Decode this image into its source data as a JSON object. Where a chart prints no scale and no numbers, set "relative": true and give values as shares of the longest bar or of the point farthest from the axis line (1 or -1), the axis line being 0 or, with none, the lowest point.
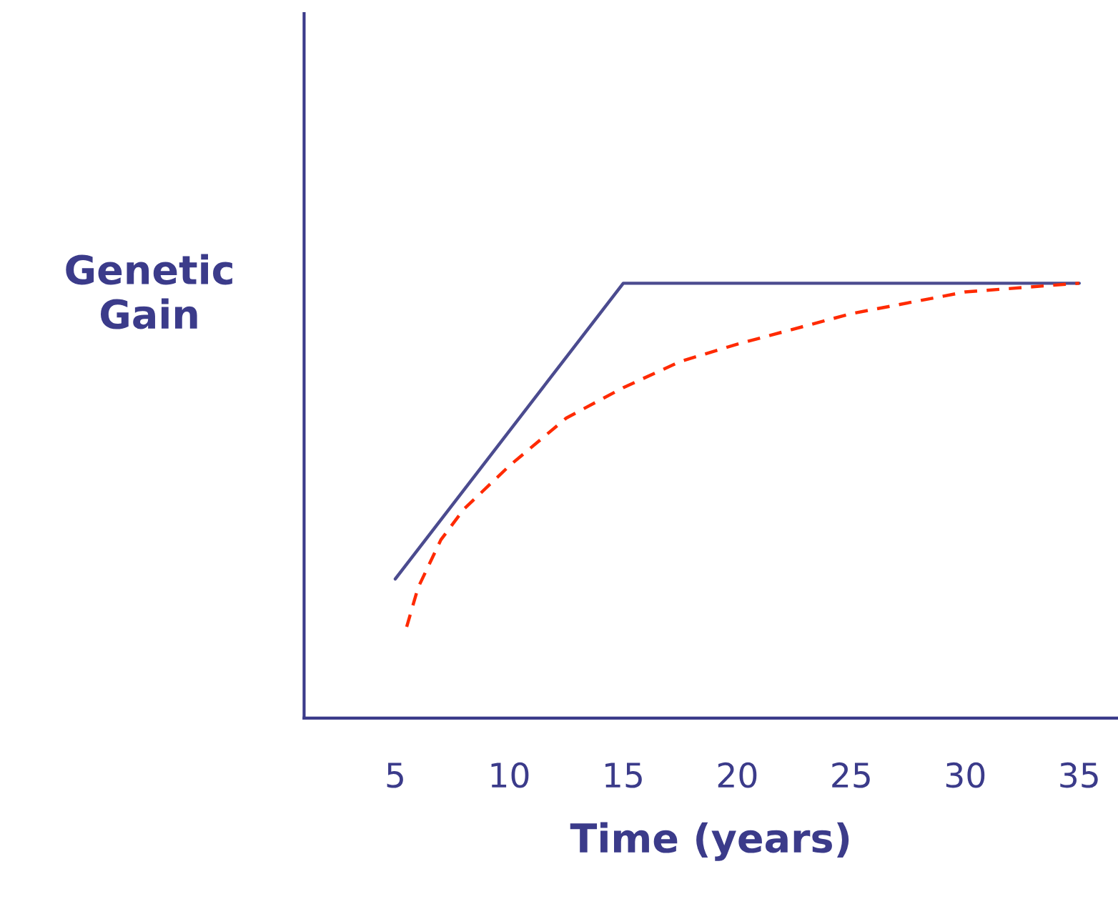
{
  "chart_data": {
    "type": "line",
    "relative": true,
    "xlabel": "Time (years)",
    "ylabel": "Genetic\nGain",
    "xlim": [
      1,
      36.7
    ],
    "xticks": [
      5,
      10,
      15,
      20,
      25,
      30,
      35
    ],
    "grid": false,
    "legend": false,
    "marker": "none",
    "series": [
      {
        "x": [
          5,
          15,
          35
        ],
        "values": [
          0.32,
          1.0,
          1.0
        ],
        "color": "#4b4b8f",
        "line_style": "solid"
      },
      {
        "x": [
          5.5,
          6,
          7,
          8,
          10,
          12.5,
          15,
          17.5,
          20,
          25,
          30,
          35
        ],
        "values": [
          0.21,
          0.3,
          0.41,
          0.48,
          0.58,
          0.69,
          0.76,
          0.82,
          0.86,
          0.93,
          0.98,
          1.0
        ],
        "color": "#ff2a00",
        "line_style": "dashed"
      }
    ]
  }
}
